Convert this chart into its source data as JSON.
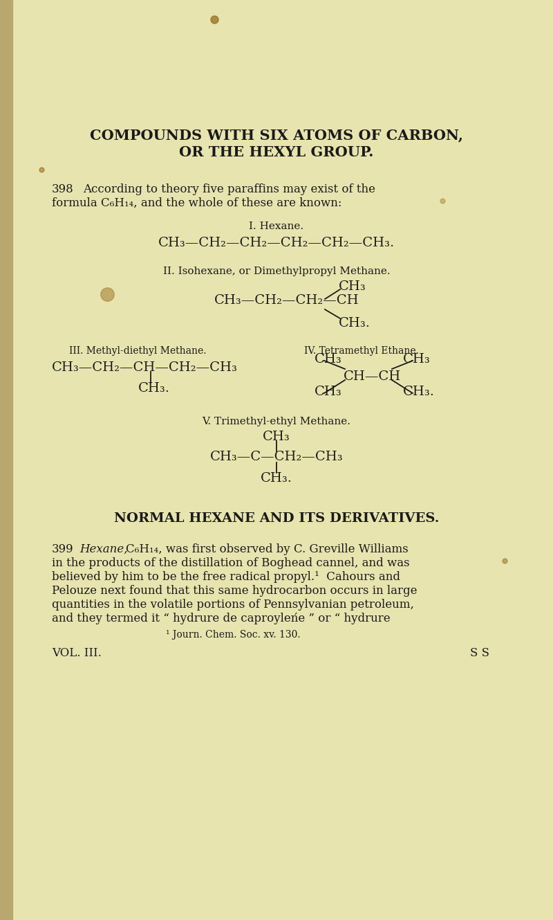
{
  "bg_color": "#e8e4b0",
  "text_color": "#1a1a1a",
  "page_width": 8.0,
  "page_height": 13.29,
  "title_line1": "COMPOUNDS WITH SIX ATOMS OF CARBON,",
  "title_line2": "OR THE HEXYL GROUP.",
  "footnote": "¹ Journ. Chem. Soc. xv. 130.",
  "footer_left": "VOL. III.",
  "footer_right": "S S"
}
